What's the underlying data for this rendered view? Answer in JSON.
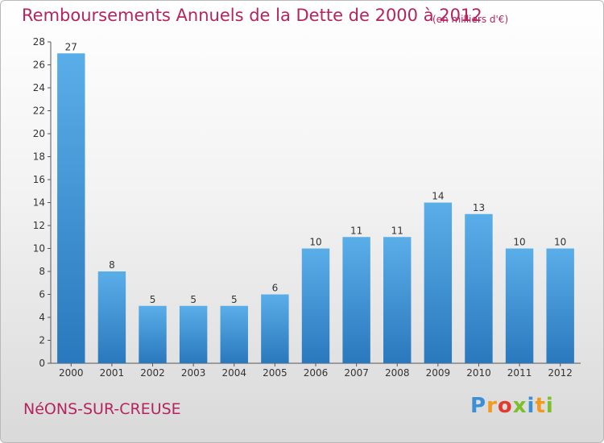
{
  "title": "Remboursements Annuels de la Dette de 2000 à 2012",
  "unit_note": "(en milliers d'€)",
  "commune": "NéONS-SUR-CREUSE",
  "brand": {
    "letters": [
      "P",
      "r",
      "o",
      "x",
      "i",
      "t",
      "i"
    ],
    "colors": [
      "#3b8fd6",
      "#f29a1d",
      "#e23a2e",
      "#7bbf2a",
      "#3b8fd6",
      "#f29a1d",
      "#7bbf2a"
    ]
  },
  "colors": {
    "bar_top": "#5aaee8",
    "bar_bottom": "#2a78bd",
    "axis": "#555555",
    "grid": "#cccccc",
    "text": "#333333",
    "accent": "#b4245f"
  },
  "chart_data": {
    "type": "bar",
    "categories": [
      "2000",
      "2001",
      "2002",
      "2003",
      "2004",
      "2005",
      "2006",
      "2007",
      "2008",
      "2009",
      "2010",
      "2011",
      "2012"
    ],
    "values": [
      27,
      8,
      5,
      5,
      5,
      6,
      10,
      11,
      11,
      14,
      13,
      10,
      10
    ],
    "ylim": [
      0,
      28
    ],
    "yticks": [
      0,
      2,
      4,
      6,
      8,
      10,
      12,
      14,
      16,
      18,
      20,
      22,
      24,
      26,
      28
    ],
    "grid": false,
    "data_labels": true
  }
}
